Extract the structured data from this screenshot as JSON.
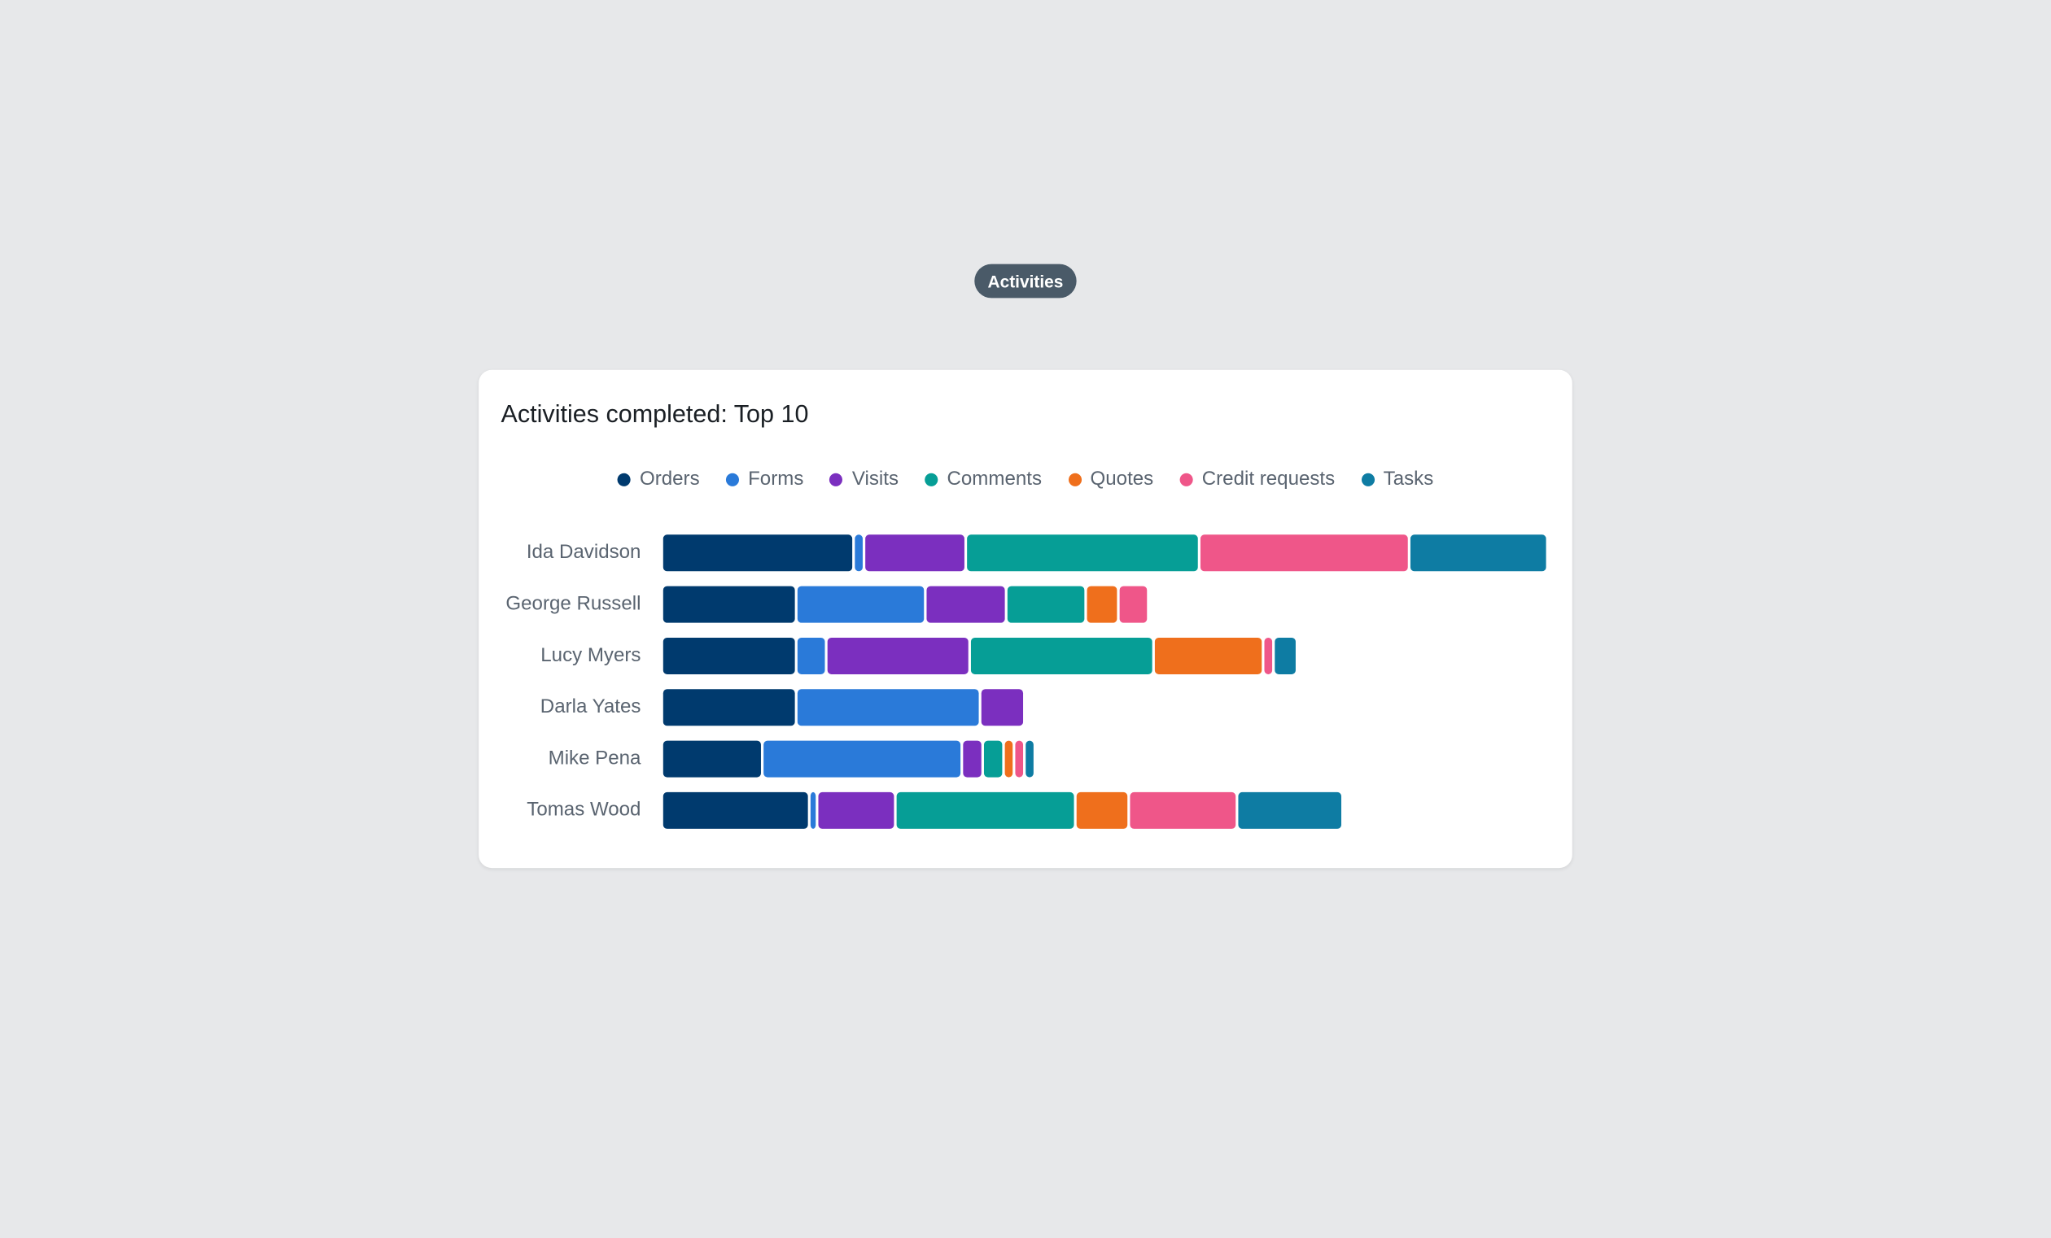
{
  "tab_label": "Activities",
  "chart_data": {
    "type": "stacked-bar-horizontal",
    "title": "Activities completed: Top 10",
    "categories": [
      "Ida Davidson",
      "George Russell",
      "Lucy Myers",
      "Darla Yates",
      "Mike Pena",
      "Tomas Wood"
    ],
    "xlim": [
      0,
      679
    ],
    "series": [
      {
        "name": "Orders",
        "color": "#003a6e",
        "values": [
          147,
          103,
          103,
          103,
          77,
          113
        ]
      },
      {
        "name": "Forms",
        "color": "#2a7ad9",
        "values": [
          8,
          99,
          23,
          141,
          153,
          6
        ]
      },
      {
        "name": "Visits",
        "color": "#7b2fbf",
        "values": [
          78,
          62,
          110,
          34,
          16,
          60
        ]
      },
      {
        "name": "Comments",
        "color": "#069e96",
        "values": [
          179,
          61,
          141,
          0,
          16,
          138
        ]
      },
      {
        "name": "Quotes",
        "color": "#ef6f1c",
        "values": [
          0,
          25,
          84,
          0,
          8,
          41
        ]
      },
      {
        "name": "Credit requests",
        "color": "#ef5689",
        "values": [
          161,
          23,
          8,
          0,
          8,
          83
        ]
      },
      {
        "name": "Tasks",
        "color": "#0e7ca3",
        "values": [
          106,
          0,
          18,
          0,
          8,
          81
        ]
      }
    ]
  }
}
